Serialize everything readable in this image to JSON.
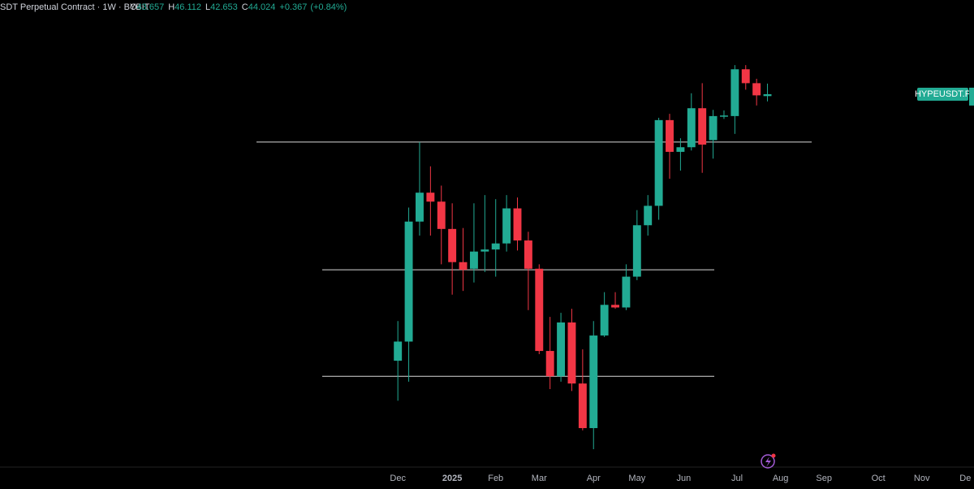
{
  "header": {
    "symbol": "SDT Perpetual Contract · 1W · BYBIT",
    "ohlc_prefixes": [
      "O",
      "H",
      "L",
      "C"
    ],
    "change": "+0.367",
    "change_percent": "(+0.84%)"
  },
  "chart_data": {
    "type": "candlestick",
    "price_tag": "HYPEUSDT.P",
    "x": [
      0,
      1,
      2,
      3,
      4,
      5,
      6,
      7,
      8,
      9,
      10,
      11,
      12,
      13,
      14,
      15,
      16,
      17,
      18,
      19,
      20,
      21,
      22,
      23,
      24,
      25,
      26,
      27,
      28,
      29,
      30,
      31,
      32,
      33,
      34
    ],
    "open": [
      13.7,
      14.9,
      25.2,
      28.6,
      27.5,
      24.4,
      21.1,
      20.5,
      22.1,
      22.3,
      22.9,
      26.7,
      23.2,
      20.5,
      14.3,
      12.8,
      16.2,
      12.4,
      10.2,
      15.3,
      17.5,
      17.3,
      19.8,
      24.8,
      27.0,
      39.3,
      34.2,
      34.9,
      41.4,
      36.0,
      40.0,
      40.0,
      49.1,
      46.2,
      43.657
    ],
    "high": [
      16.3,
      26.8,
      35.7,
      32.1,
      29.5,
      27.3,
      24.5,
      27.3,
      28.3,
      27.8,
      28.3,
      28.0,
      24.1,
      20.9,
      16.6,
      16.9,
      17.2,
      14.4,
      16.3,
      18.5,
      18.5,
      20.9,
      26.5,
      28.3,
      39.7,
      40.4,
      36.3,
      44.2,
      46.2,
      41.1,
      41.0,
      50.0,
      50.0,
      47.1,
      46.112
    ],
    "low": [
      11.5,
      12.5,
      23.7,
      23.7,
      20.9,
      18.3,
      18.6,
      19.3,
      20.2,
      19.8,
      22.1,
      22.2,
      17.1,
      14.1,
      12.1,
      12.5,
      12.0,
      10.1,
      9.3,
      15.2,
      17.2,
      17.1,
      19.5,
      23.7,
      25.4,
      30.4,
      31.5,
      34.4,
      31.2,
      33.2,
      39.5,
      37.0,
      44.9,
      41.9,
      42.653
    ],
    "close": [
      14.9,
      25.2,
      28.6,
      27.5,
      24.4,
      21.1,
      20.4,
      22.1,
      22.3,
      22.9,
      26.7,
      23.2,
      20.5,
      14.3,
      12.8,
      16.2,
      12.4,
      10.2,
      15.3,
      17.5,
      17.3,
      19.8,
      24.8,
      27.0,
      39.3,
      34.2,
      34.9,
      41.4,
      35.3,
      40.0,
      40.1,
      49.1,
      46.2,
      43.8,
      44.024
    ],
    "up_color": "#22ab94",
    "down_color": "#f23645",
    "levels": [
      35.7,
      20.4,
      12.8
    ],
    "level_color": "#d9d9d9",
    "ylim": [
      8.6,
      66.5
    ],
    "log_scale": true,
    "xlim": [
      -36.6,
      53
    ],
    "xticks": [
      {
        "value": 0,
        "label": "Dec"
      },
      {
        "value": 5,
        "label": "2025"
      },
      {
        "value": 9,
        "label": "Feb"
      },
      {
        "value": 13,
        "label": "Mar"
      },
      {
        "value": 18,
        "label": "Apr"
      },
      {
        "value": 22,
        "label": "May"
      },
      {
        "value": 26.3,
        "label": "Jun"
      },
      {
        "value": 31.2,
        "label": "Jul"
      },
      {
        "value": 35.2,
        "label": "Aug"
      },
      {
        "value": 39.2,
        "label": "Sep"
      },
      {
        "value": 44.2,
        "label": "Oct"
      },
      {
        "value": 48.2,
        "label": "Nov"
      },
      {
        "value": 52.2,
        "label": "De"
      }
    ]
  }
}
